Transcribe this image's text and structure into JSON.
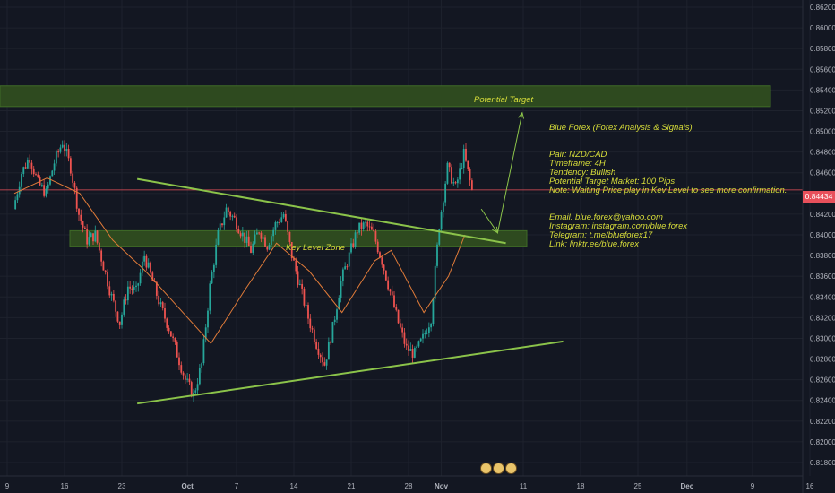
{
  "colors": {
    "background": "#131722",
    "grid": "#1e222d",
    "axis_text": "#b2b5be",
    "up": "#26a69a",
    "down": "#ef5350",
    "trendline": "#8bc34a",
    "zone_fill": "#2e4a1f",
    "zone_edge": "#3f6b27",
    "ma": "#e07b39",
    "price_line": "#e8505b",
    "annotation_text": "#d8de3a"
  },
  "annotations": {
    "potential_target": "Potential Target",
    "key_level_zone": "Key Level Zone",
    "title": "Blue Forex (Forex Analysis & Signals)",
    "pair": "Pair: NZD/CAD",
    "timeframe": "Timeframe: 4H",
    "tendency": "Tendency: Bullish",
    "target": "Potential Target Market: 100 Pips",
    "note": "Note: Waiting Price play in Kev Level to see more confirmation.",
    "email": "Email: blue.forex@yahoo.com",
    "instagram": "Instagram: instagram.com/blue.forex",
    "telegram": "Telegram: t.me/blueforex17",
    "link": "Link: linktr.ee/blue.forex"
  },
  "current_price_label": "0.84434",
  "chart_data": {
    "type": "line",
    "title": "",
    "instrument": "NZD/CAD",
    "timeframe": "4H",
    "x_ticks": [
      "9",
      "16",
      "23",
      "Oct",
      "7",
      "14",
      "21",
      "28",
      "Nov",
      "11",
      "18",
      "25",
      "Dec",
      "9",
      "16"
    ],
    "y_ticks": [
      "0.86200",
      "0.86000",
      "0.85800",
      "0.85600",
      "0.85400",
      "0.85200",
      "0.85000",
      "0.84800",
      "0.84600",
      "0.84400",
      "0.84200",
      "0.84000",
      "0.83800",
      "0.83600",
      "0.83400",
      "0.83200",
      "0.83000",
      "0.82800",
      "0.82600",
      "0.82400",
      "0.82200",
      "0.82000",
      "0.81800"
    ],
    "ylim": [
      0.8175,
      0.863
    ],
    "current_price": 0.84434,
    "series": [
      {
        "type": "candlestick-close",
        "values": [
          [
            "2019-09-09",
            0.8425
          ],
          [
            "2019-09-10",
            0.846
          ],
          [
            "2019-09-11",
            0.8475
          ],
          [
            "2019-09-12",
            0.845
          ],
          [
            "2019-09-13",
            0.844
          ],
          [
            "2019-09-14",
            0.847
          ],
          [
            "2019-09-15",
            0.849
          ],
          [
            "2019-09-16",
            0.8465
          ],
          [
            "2019-09-17",
            0.842
          ],
          [
            "2019-09-18",
            0.8395
          ],
          [
            "2019-09-19",
            0.84
          ],
          [
            "2019-09-20",
            0.837
          ],
          [
            "2019-09-21",
            0.834
          ],
          [
            "2019-09-22",
            0.8315
          ],
          [
            "2019-09-23",
            0.835
          ],
          [
            "2019-09-24",
            0.8345
          ],
          [
            "2019-09-25",
            0.838
          ],
          [
            "2019-09-26",
            0.8355
          ],
          [
            "2019-09-27",
            0.833
          ],
          [
            "2019-09-28",
            0.831
          ],
          [
            "2019-09-29",
            0.8285
          ],
          [
            "2019-09-30",
            0.826
          ],
          [
            "2019-10-01",
            0.8245
          ],
          [
            "2019-10-02",
            0.8275
          ],
          [
            "2019-10-03",
            0.835
          ],
          [
            "2019-10-04",
            0.84
          ],
          [
            "2019-10-05",
            0.8425
          ],
          [
            "2019-10-06",
            0.8415
          ],
          [
            "2019-10-07",
            0.84
          ],
          [
            "2019-10-08",
            0.8385
          ],
          [
            "2019-10-09",
            0.8405
          ],
          [
            "2019-10-10",
            0.839
          ],
          [
            "2019-10-11",
            0.841
          ],
          [
            "2019-10-12",
            0.842
          ],
          [
            "2019-10-13",
            0.838
          ],
          [
            "2019-10-14",
            0.835
          ],
          [
            "2019-10-15",
            0.832
          ],
          [
            "2019-10-16",
            0.8295
          ],
          [
            "2019-10-17",
            0.8275
          ],
          [
            "2019-10-18",
            0.831
          ],
          [
            "2019-10-19",
            0.8355
          ],
          [
            "2019-10-20",
            0.838
          ],
          [
            "2019-10-21",
            0.8405
          ],
          [
            "2019-10-22",
            0.841
          ],
          [
            "2019-10-23",
            0.84
          ],
          [
            "2019-10-24",
            0.8375
          ],
          [
            "2019-10-25",
            0.8345
          ],
          [
            "2019-10-26",
            0.8315
          ],
          [
            "2019-10-27",
            0.829
          ],
          [
            "2019-10-28",
            0.8285
          ],
          [
            "2019-10-29",
            0.83
          ],
          [
            "2019-10-30",
            0.832
          ],
          [
            "2019-10-31",
            0.841
          ],
          [
            "2019-11-01",
            0.8465
          ],
          [
            "2019-11-02",
            0.8445
          ],
          [
            "2019-11-03",
            0.8478
          ],
          [
            "2019-11-04",
            0.8443
          ]
        ]
      },
      {
        "name": "",
        "type": "moving-average",
        "values": [
          [
            "2019-09-09",
            0.844
          ],
          [
            "2019-09-13",
            0.8455
          ],
          [
            "2019-09-17",
            0.844
          ],
          [
            "2019-09-21",
            0.8395
          ],
          [
            "2019-09-25",
            0.8365
          ],
          [
            "2019-09-29",
            0.833
          ],
          [
            "2019-10-03",
            0.8295
          ],
          [
            "2019-10-07",
            0.8345
          ],
          [
            "2019-10-11",
            0.8392
          ],
          [
            "2019-10-15",
            0.8365
          ],
          [
            "2019-10-19",
            0.8325
          ],
          [
            "2019-10-23",
            0.8375
          ],
          [
            "2019-10-25",
            0.8385
          ],
          [
            "2019-10-29",
            0.8325
          ],
          [
            "2019-11-01",
            0.836
          ],
          [
            "2019-11-03",
            0.84
          ]
        ]
      }
    ],
    "zones": [
      {
        "label": "Potential Target",
        "from": 0.8524,
        "to": 0.8544
      },
      {
        "label": "Key Level Zone",
        "from": 0.8389,
        "to": 0.8404
      }
    ],
    "trendlines": [
      {
        "from": [
          "2019-09-24",
          0.8454
        ],
        "to": [
          "2019-11-08",
          0.8392
        ]
      },
      {
        "from": [
          "2019-09-24",
          0.8237
        ],
        "to": [
          "2019-11-15",
          0.8297
        ]
      }
    ],
    "projection": [
      [
        "2019-11-05",
        0.8425
      ],
      [
        "2019-11-07",
        0.8402
      ],
      [
        "2019-11-10",
        0.8518
      ]
    ],
    "grid": true,
    "legend": "none"
  }
}
